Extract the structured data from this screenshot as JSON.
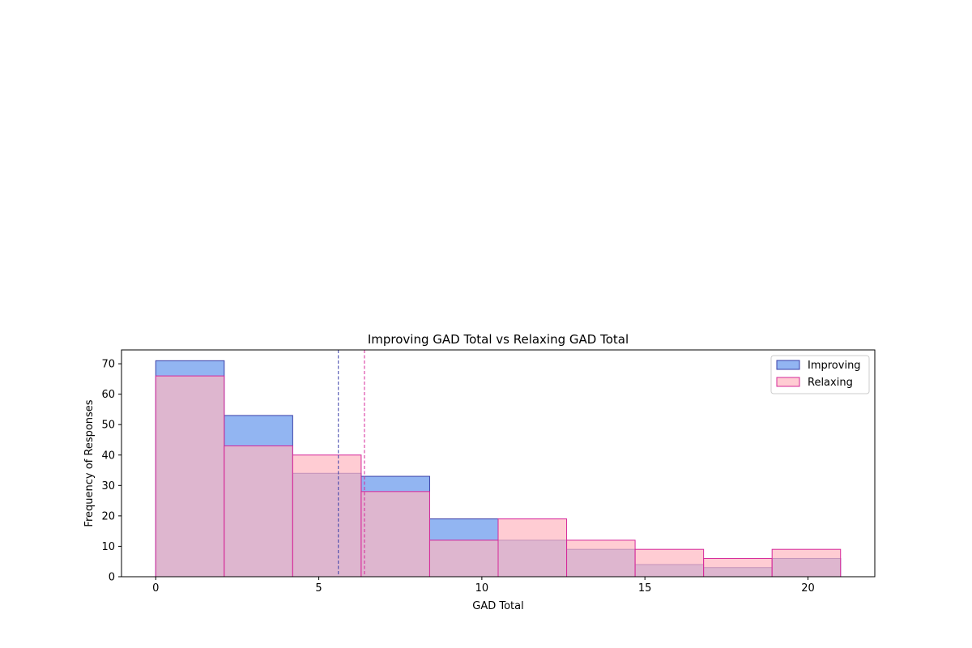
{
  "chart_data": {
    "type": "bar",
    "title": "Improving GAD Total vs Relaxing GAD Total",
    "xlabel": "GAD Total",
    "ylabel": "Frequency of Responses",
    "xlim": [
      -1.05,
      22.05
    ],
    "ylim": [
      0,
      74.55
    ],
    "xticks": [
      0,
      5,
      10,
      15,
      20
    ],
    "yticks": [
      0,
      10,
      20,
      30,
      40,
      50,
      60,
      70
    ],
    "bin_edges": [
      0,
      2.1,
      4.2,
      6.3,
      8.4,
      10.5,
      12.6,
      14.7,
      16.8,
      18.9,
      21
    ],
    "legend_position": "upper right",
    "grid": false,
    "series": [
      {
        "name": "Improving",
        "values": [
          71,
          53,
          34,
          33,
          19,
          12,
          9,
          4,
          3,
          6
        ],
        "fill": "#6495ED",
        "edge": "#3A3FA8",
        "mean": 5.6
      },
      {
        "name": "Relaxing",
        "values": [
          66,
          43,
          40,
          28,
          12,
          19,
          12,
          9,
          6,
          9
        ],
        "fill": "#FFB6C1",
        "edge": "#D6289A",
        "mean": 6.4
      }
    ]
  }
}
